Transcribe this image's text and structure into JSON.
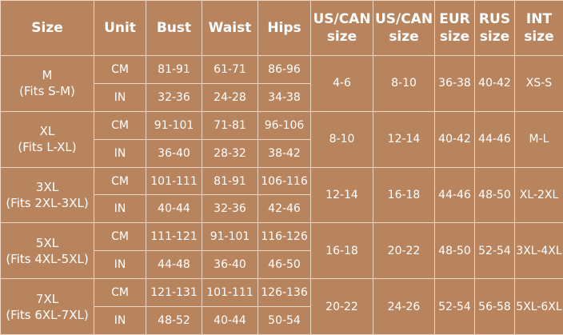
{
  "table": {
    "header": [
      [
        "Size"
      ],
      [
        "Unit"
      ],
      [
        "Bust"
      ],
      [
        "Waist"
      ],
      [
        "Hips"
      ],
      [
        "US/CAN",
        "size"
      ],
      [
        "US/CAN",
        "size"
      ],
      [
        "EUR",
        "size"
      ],
      [
        "RUS",
        "size"
      ],
      [
        "INT",
        "size"
      ]
    ],
    "groups": [
      {
        "size": "M",
        "fits": "(Fits S-M)",
        "rows": [
          [
            "CM",
            "81-91",
            "61-71",
            "86-96"
          ],
          [
            "IN",
            "32-36",
            "24-28",
            "34-38"
          ]
        ],
        "us_can_1": "4-6",
        "us_can_2": "8-10",
        "eur": "36-38",
        "rus": "40-42",
        "int": "XS-S"
      },
      {
        "size": "XL",
        "fits": "(Fits L-XL)",
        "rows": [
          [
            "CM",
            "91-101",
            "71-81",
            "96-106"
          ],
          [
            "IN",
            "36-40",
            "28-32",
            "38-42"
          ]
        ],
        "us_can_1": "8-10",
        "us_can_2": "12-14",
        "eur": "40-42",
        "rus": "44-46",
        "int": "M-L"
      },
      {
        "size": "3XL",
        "fits": "(Fits 2XL-3XL)",
        "rows": [
          [
            "CM",
            "101-111",
            "81-91",
            "106-116"
          ],
          [
            "IN",
            "40-44",
            "32-36",
            "42-46"
          ]
        ],
        "us_can_1": "12-14",
        "us_can_2": "16-18",
        "eur": "44-46",
        "rus": "48-50",
        "int": "XL-2XL"
      },
      {
        "size": "5XL",
        "fits": "(Fits 4XL-5XL)",
        "rows": [
          [
            "CM",
            "111-121",
            "91-101",
            "116-126"
          ],
          [
            "IN",
            "44-48",
            "36-40",
            "46-50"
          ]
        ],
        "us_can_1": "16-18",
        "us_can_2": "20-22",
        "eur": "48-50",
        "rus": "52-54",
        "int": "3XL-4XL"
      },
      {
        "size": "7XL",
        "fits": "(Fits 6XL-7XL)",
        "rows": [
          [
            "CM",
            "121-131",
            "101-111",
            "126-136"
          ],
          [
            "IN",
            "48-52",
            "40-44",
            "50-54"
          ]
        ],
        "us_can_1": "20-22",
        "us_can_2": "24-26",
        "eur": "52-54",
        "rus": "56-58",
        "int": "5XL-6XL"
      }
    ]
  }
}
